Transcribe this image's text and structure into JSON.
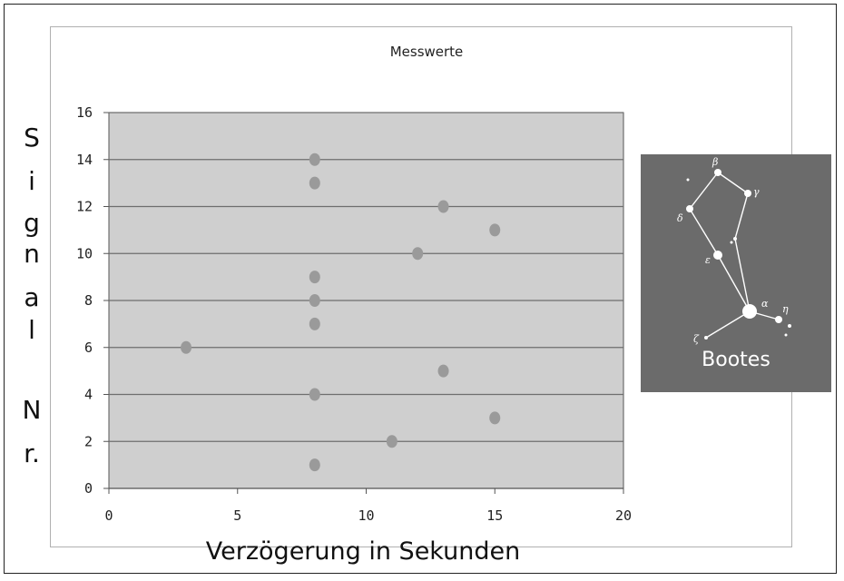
{
  "chart_data": {
    "type": "scatter",
    "title": "Messwerte",
    "xlabel": "Verzögerung in Sekunden",
    "ylabel_letters": [
      "S",
      "i",
      "g",
      "n",
      "a",
      "l",
      "N",
      "r."
    ],
    "xlim": [
      0,
      20
    ],
    "ylim": [
      0,
      16
    ],
    "xticks": [
      0,
      5,
      10,
      15,
      20
    ],
    "yticks": [
      0,
      2,
      4,
      6,
      8,
      10,
      12,
      14,
      16
    ],
    "grid": "horizontal",
    "legend": "none",
    "points": [
      {
        "x": 8,
        "y": 1
      },
      {
        "x": 11,
        "y": 2
      },
      {
        "x": 15,
        "y": 3
      },
      {
        "x": 8,
        "y": 4
      },
      {
        "x": 13,
        "y": 5
      },
      {
        "x": 3,
        "y": 6
      },
      {
        "x": 8,
        "y": 7
      },
      {
        "x": 8,
        "y": 8
      },
      {
        "x": 8,
        "y": 9
      },
      {
        "x": 12,
        "y": 10
      },
      {
        "x": 15,
        "y": 11
      },
      {
        "x": 13,
        "y": 12
      },
      {
        "x": 8,
        "y": 13
      },
      {
        "x": 8,
        "y": 14
      }
    ],
    "colors": {
      "plot_background": "#cfcfcf",
      "gridline": "#6e6e6e",
      "marker": "#9a9a9a",
      "axis": "#555555"
    }
  },
  "inset": {
    "caption": "Bootes",
    "star_labels": [
      "β",
      "γ",
      "δ",
      "ε",
      "α",
      "η",
      "ζ"
    ],
    "background": "#6b6b6b"
  }
}
